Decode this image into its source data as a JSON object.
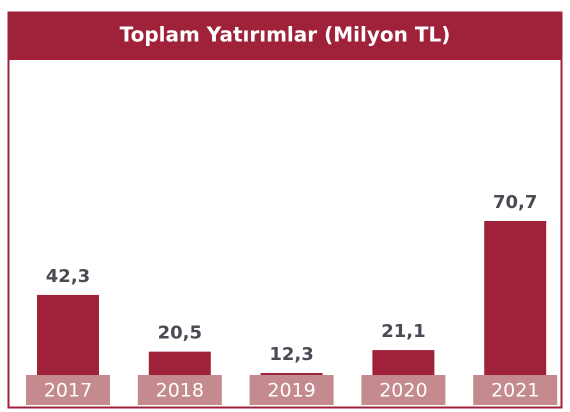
{
  "chart_data": {
    "type": "bar",
    "title": "Toplam Yatırımlar (Milyon TL)",
    "categories": [
      "2017",
      "2018",
      "2019",
      "2020",
      "2021"
    ],
    "values": [
      42.3,
      20.5,
      12.3,
      21.1,
      70.7
    ],
    "value_labels": [
      "42,3",
      "20,5",
      "12,3",
      "21,1",
      "70,7"
    ],
    "color": "#a0223a"
  }
}
